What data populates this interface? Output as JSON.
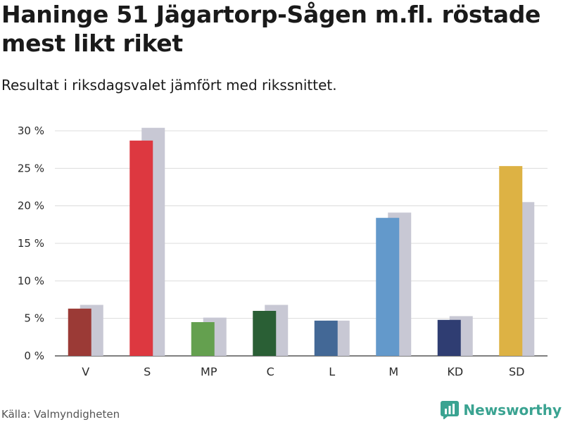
{
  "title": "Haninge 51 Jägartorp-Sågen m.fl. röstade mest likt riket",
  "subtitle": "Resultat i riksdagsvalet jämfört med rikssnittet.",
  "source": "Källa: Valmyndigheten",
  "brand": {
    "name": "Newsworthy",
    "color": "#3aa391",
    "icon": "bar-chart-logo-icon"
  },
  "chart_data": {
    "type": "bar",
    "categories": [
      "V",
      "S",
      "MP",
      "C",
      "L",
      "M",
      "KD",
      "SD"
    ],
    "series": [
      {
        "values": [
          6.3,
          28.7,
          4.5,
          6.0,
          4.7,
          18.4,
          4.8,
          25.3
        ],
        "colors": [
          "#9b3a36",
          "#dd3840",
          "#64a04f",
          "#2a5f35",
          "#436896",
          "#6399cb",
          "#2f3d72",
          "#ddb244"
        ]
      },
      {
        "values": [
          6.8,
          30.4,
          5.1,
          6.8,
          4.7,
          19.1,
          5.3,
          20.5
        ],
        "color": "#c8c8d4"
      }
    ],
    "y_ticks": [
      0,
      5,
      10,
      15,
      20,
      25,
      30
    ],
    "y_tick_labels": [
      "0 %",
      "5 %",
      "10 %",
      "15 %",
      "20 %",
      "25 %",
      "30 %"
    ],
    "ylim": [
      0,
      30
    ],
    "grid": true,
    "xlabel": "",
    "ylabel": ""
  }
}
